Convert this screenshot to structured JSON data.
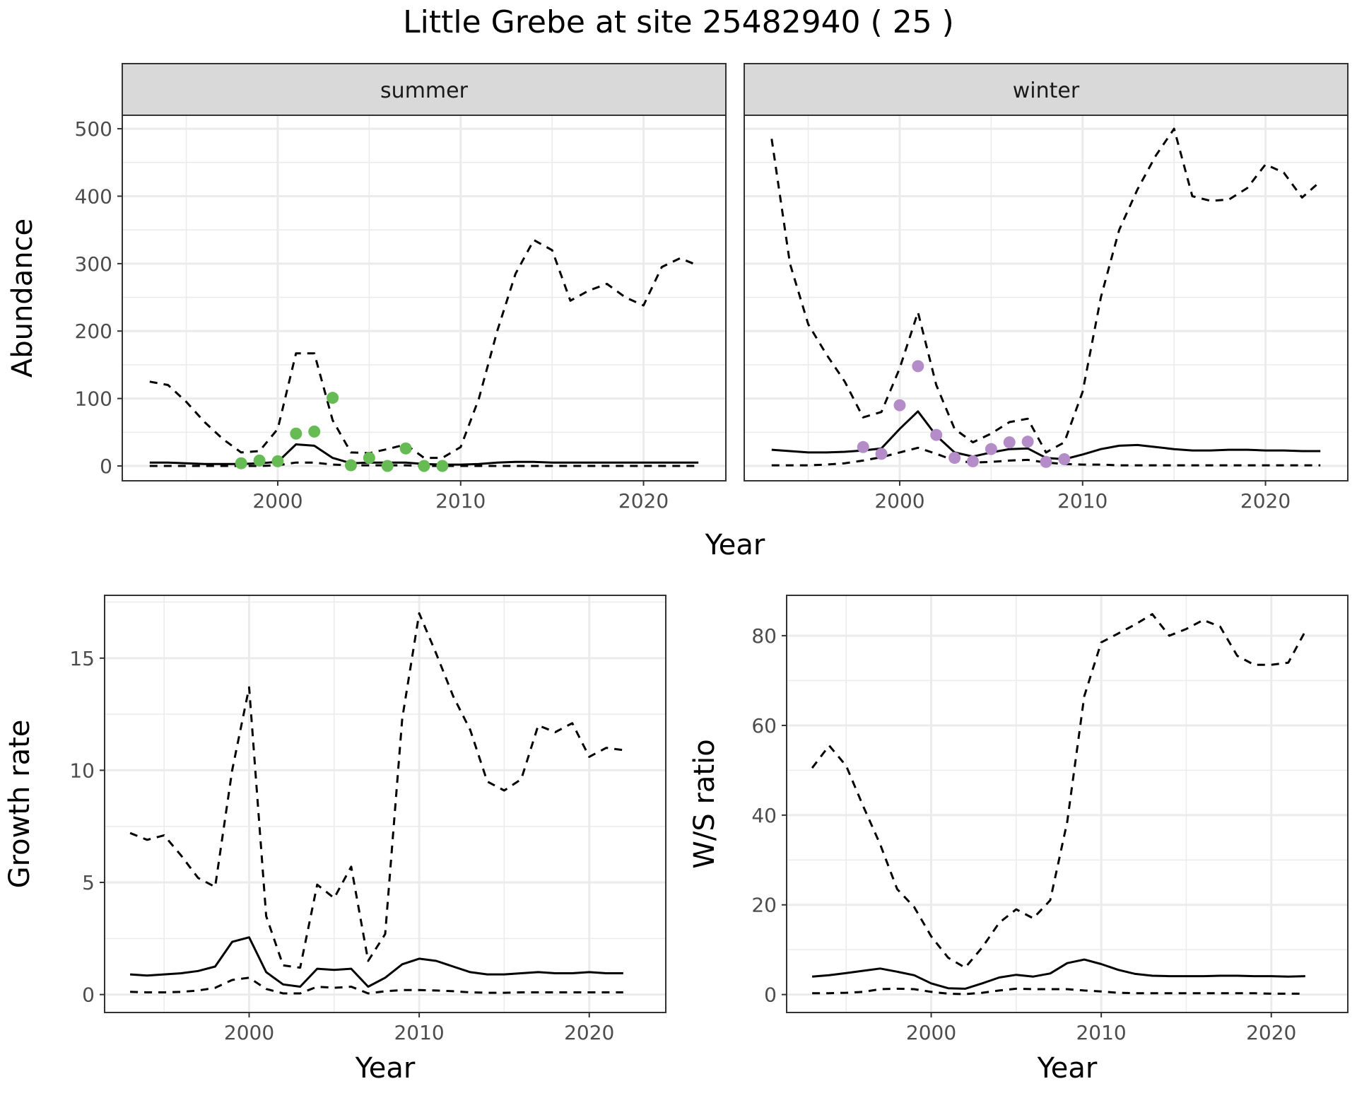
{
  "title": "Little Grebe at site 25482940 ( 25 )",
  "colors": {
    "summer_points": "#66bb55",
    "winter_points": "#b48cc8",
    "lines": "#000000",
    "strip_bg": "#d9d9d9",
    "grid": "#ebebeb"
  },
  "chart_data": [
    {
      "id": "summer",
      "type": "line",
      "strip_label": "summer",
      "xlabel": "",
      "ylabel": "Abundance",
      "xlim": [
        1991.5,
        2024.5
      ],
      "ylim": [
        -22,
        520
      ],
      "xticks": [
        2000,
        2010,
        2020
      ],
      "yticks": [
        0,
        100,
        200,
        300,
        400,
        500
      ],
      "series": [
        {
          "style": "solid",
          "x": [
            1993,
            1994,
            1995,
            1996,
            1997,
            1998,
            1999,
            2000,
            2001,
            2002,
            2003,
            2004,
            2005,
            2006,
            2007,
            2008,
            2009,
            2010,
            2011,
            2012,
            2013,
            2014,
            2015,
            2016,
            2017,
            2018,
            2019,
            2020,
            2021,
            2022,
            2023
          ],
          "values": [
            5,
            5,
            4,
            3,
            3,
            3,
            4,
            6,
            32,
            30,
            12,
            4,
            5,
            5,
            5,
            3,
            2,
            2,
            3,
            5,
            6,
            6,
            5,
            5,
            5,
            5,
            5,
            5,
            5,
            5,
            5
          ]
        },
        {
          "style": "dashed",
          "x": [
            1993,
            1994,
            1995,
            1996,
            1997,
            1998,
            1999,
            2000,
            2001,
            2002,
            2003,
            2004,
            2005,
            2006,
            2007,
            2008,
            2009,
            2010,
            2011,
            2012,
            2013,
            2014,
            2015,
            2016,
            2017,
            2018,
            2019,
            2020,
            2021,
            2022,
            2023
          ],
          "values": [
            125,
            120,
            95,
            65,
            40,
            20,
            22,
            55,
            167,
            167,
            68,
            20,
            19,
            25,
            32,
            12,
            12,
            28,
            100,
            200,
            285,
            335,
            320,
            245,
            260,
            270,
            250,
            238,
            295,
            308,
            297
          ]
        },
        {
          "style": "dashed",
          "x": [
            1993,
            1994,
            1995,
            1996,
            1997,
            1998,
            1999,
            2000,
            2001,
            2002,
            2003,
            2004,
            2005,
            2006,
            2007,
            2008,
            2009,
            2010,
            2011,
            2012,
            2013,
            2014,
            2015,
            2016,
            2017,
            2018,
            2019,
            2020,
            2021,
            2022,
            2023
          ],
          "values": [
            0,
            0,
            0,
            0,
            0,
            0,
            0,
            1,
            5,
            5,
            2,
            1,
            1,
            1,
            1,
            0,
            0,
            0,
            0,
            0,
            0,
            0,
            0,
            0,
            0,
            0,
            0,
            0,
            0,
            0,
            0
          ]
        }
      ],
      "points": {
        "x": [
          1998,
          1999,
          2000,
          2001,
          2002,
          2003,
          2004,
          2005,
          2006,
          2007,
          2008,
          2009
        ],
        "values": [
          4,
          8,
          7,
          48,
          51,
          101,
          1,
          12,
          0,
          26,
          0,
          0
        ]
      }
    },
    {
      "id": "winter",
      "type": "line",
      "strip_label": "winter",
      "xlabel": "",
      "ylabel": "",
      "xlim": [
        1991.5,
        2024.5
      ],
      "ylim": [
        -22,
        520
      ],
      "xticks": [
        2000,
        2010,
        2020
      ],
      "yticks": [],
      "series": [
        {
          "style": "solid",
          "x": [
            1993,
            1994,
            1995,
            1996,
            1997,
            1998,
            1999,
            2000,
            2001,
            2002,
            2003,
            2004,
            2005,
            2006,
            2007,
            2008,
            2009,
            2010,
            2011,
            2012,
            2013,
            2014,
            2015,
            2016,
            2017,
            2018,
            2019,
            2020,
            2021,
            2022,
            2023
          ],
          "values": [
            24,
            22,
            20,
            20,
            21,
            23,
            26,
            55,
            81,
            45,
            20,
            14,
            20,
            25,
            26,
            12,
            10,
            17,
            25,
            30,
            31,
            28,
            25,
            23,
            23,
            24,
            24,
            23,
            23,
            22,
            22
          ]
        },
        {
          "style": "dashed",
          "x": [
            1993,
            1994,
            1995,
            1996,
            1997,
            1998,
            1999,
            2000,
            2001,
            2002,
            2003,
            2004,
            2005,
            2006,
            2007,
            2008,
            2009,
            2010,
            2011,
            2012,
            2013,
            2014,
            2015,
            2016,
            2017,
            2018,
            2019,
            2020,
            2021,
            2022,
            2023
          ],
          "values": [
            485,
            300,
            210,
            165,
            125,
            72,
            80,
            145,
            228,
            120,
            55,
            35,
            48,
            65,
            70,
            20,
            35,
            110,
            250,
            350,
            410,
            460,
            500,
            400,
            393,
            395,
            412,
            447,
            435,
            398,
            422
          ]
        },
        {
          "style": "dashed",
          "x": [
            1993,
            1994,
            1995,
            1996,
            1997,
            1998,
            1999,
            2000,
            2001,
            2002,
            2003,
            2004,
            2005,
            2006,
            2007,
            2008,
            2009,
            2010,
            2011,
            2012,
            2013,
            2014,
            2015,
            2016,
            2017,
            2018,
            2019,
            2020,
            2021,
            2022,
            2023
          ],
          "values": [
            1,
            1,
            1,
            2,
            4,
            8,
            13,
            20,
            27,
            18,
            8,
            5,
            6,
            8,
            9,
            5,
            3,
            2,
            2,
            1,
            1,
            1,
            1,
            1,
            1,
            1,
            1,
            1,
            1,
            1,
            1
          ]
        }
      ],
      "points": {
        "x": [
          1998,
          1999,
          2000,
          2001,
          2002,
          2003,
          2004,
          2005,
          2006,
          2007,
          2008,
          2009
        ],
        "values": [
          28,
          18,
          90,
          148,
          46,
          12,
          7,
          25,
          35,
          36,
          6,
          10
        ]
      }
    },
    {
      "id": "growth",
      "type": "line",
      "xlabel": "Year",
      "ylabel": "Growth rate",
      "xlim": [
        1991.5,
        2024.5
      ],
      "ylim": [
        -0.8,
        17.8
      ],
      "xticks": [
        2000,
        2010,
        2020
      ],
      "yticks": [
        0,
        5,
        10,
        15
      ],
      "series": [
        {
          "style": "solid",
          "x": [
            1993,
            1994,
            1995,
            1996,
            1997,
            1998,
            1999,
            2000,
            2001,
            2002,
            2003,
            2004,
            2005,
            2006,
            2007,
            2008,
            2009,
            2010,
            2011,
            2012,
            2013,
            2014,
            2015,
            2016,
            2017,
            2018,
            2019,
            2020,
            2021,
            2022
          ],
          "values": [
            0.9,
            0.85,
            0.9,
            0.95,
            1.05,
            1.25,
            2.35,
            2.55,
            1.0,
            0.45,
            0.35,
            1.15,
            1.1,
            1.15,
            0.35,
            0.75,
            1.35,
            1.6,
            1.5,
            1.25,
            1.0,
            0.9,
            0.9,
            0.95,
            1.0,
            0.95,
            0.95,
            1.0,
            0.95,
            0.95
          ]
        },
        {
          "style": "dashed",
          "x": [
            1993,
            1994,
            1995,
            1996,
            1997,
            1998,
            1999,
            2000,
            2001,
            2002,
            2003,
            2004,
            2005,
            2006,
            2007,
            2008,
            2009,
            2010,
            2011,
            2012,
            2013,
            2014,
            2015,
            2016,
            2017,
            2018,
            2019,
            2020,
            2021,
            2022
          ],
          "values": [
            7.2,
            6.9,
            7.1,
            6.2,
            5.2,
            4.8,
            10.0,
            13.7,
            3.5,
            1.3,
            1.2,
            4.9,
            4.3,
            5.7,
            1.5,
            2.7,
            12.3,
            17.0,
            15.2,
            13.3,
            11.8,
            9.5,
            9.1,
            9.6,
            12.0,
            11.7,
            12.1,
            10.6,
            11.0,
            10.9
          ]
        },
        {
          "style": "dashed",
          "x": [
            1993,
            1994,
            1995,
            1996,
            1997,
            1998,
            1999,
            2000,
            2001,
            2002,
            2003,
            2004,
            2005,
            2006,
            2007,
            2008,
            2009,
            2010,
            2011,
            2012,
            2013,
            2014,
            2015,
            2016,
            2017,
            2018,
            2019,
            2020,
            2021,
            2022
          ],
          "values": [
            0.12,
            0.1,
            0.1,
            0.12,
            0.18,
            0.3,
            0.65,
            0.75,
            0.25,
            0.05,
            0.05,
            0.35,
            0.3,
            0.35,
            0.05,
            0.15,
            0.2,
            0.2,
            0.18,
            0.15,
            0.1,
            0.08,
            0.08,
            0.1,
            0.1,
            0.1,
            0.1,
            0.1,
            0.1,
            0.1
          ]
        }
      ]
    },
    {
      "id": "ratio",
      "type": "line",
      "xlabel": "Year",
      "ylabel": "W/S ratio",
      "xlim": [
        1991.5,
        2024.5
      ],
      "ylim": [
        -4,
        89
      ],
      "xticks": [
        2000,
        2010,
        2020
      ],
      "yticks": [
        0,
        20,
        40,
        60,
        80
      ],
      "series": [
        {
          "style": "solid",
          "x": [
            1993,
            1994,
            1995,
            1996,
            1997,
            1998,
            1999,
            2000,
            2001,
            2002,
            2003,
            2004,
            2005,
            2006,
            2007,
            2008,
            2009,
            2010,
            2011,
            2012,
            2013,
            2014,
            2015,
            2016,
            2017,
            2018,
            2019,
            2020,
            2021,
            2022
          ],
          "values": [
            4.0,
            4.3,
            4.8,
            5.3,
            5.8,
            5.1,
            4.3,
            2.5,
            1.4,
            1.3,
            2.5,
            3.8,
            4.4,
            4.0,
            4.7,
            7.0,
            7.8,
            6.8,
            5.5,
            4.6,
            4.2,
            4.1,
            4.1,
            4.1,
            4.2,
            4.2,
            4.1,
            4.1,
            4.0,
            4.1
          ]
        },
        {
          "style": "dashed",
          "x": [
            1993,
            1994,
            1995,
            1996,
            1997,
            1998,
            1999,
            2000,
            2001,
            2002,
            2003,
            2004,
            2005,
            2006,
            2007,
            2008,
            2009,
            2010,
            2011,
            2012,
            2013,
            2014,
            2015,
            2016,
            2017,
            2018,
            2019,
            2020,
            2021,
            2022
          ],
          "values": [
            50.5,
            55.5,
            51.0,
            42.0,
            33.5,
            23.5,
            19.5,
            13.0,
            8.2,
            6.0,
            10.5,
            16.0,
            19.0,
            17.0,
            21.0,
            38.5,
            66.5,
            78.5,
            80.5,
            82.5,
            84.8,
            80.0,
            81.5,
            83.5,
            82.0,
            75.5,
            73.5,
            73.5,
            74.0,
            81.0
          ]
        },
        {
          "style": "dashed",
          "x": [
            1993,
            1994,
            1995,
            1996,
            1997,
            1998,
            1999,
            2000,
            2001,
            2002,
            2003,
            2004,
            2005,
            2006,
            2007,
            2008,
            2009,
            2010,
            2011,
            2012,
            2013,
            2014,
            2015,
            2016,
            2017,
            2018,
            2019,
            2020,
            2021,
            2022
          ],
          "values": [
            0.3,
            0.3,
            0.4,
            0.6,
            1.2,
            1.3,
            1.2,
            0.6,
            0.2,
            0.1,
            0.4,
            0.9,
            1.3,
            1.2,
            1.2,
            1.2,
            0.9,
            0.7,
            0.4,
            0.3,
            0.3,
            0.3,
            0.3,
            0.3,
            0.3,
            0.3,
            0.3,
            0.2,
            0.2,
            0.2
          ]
        }
      ]
    }
  ],
  "shared_xlabel": "Year"
}
